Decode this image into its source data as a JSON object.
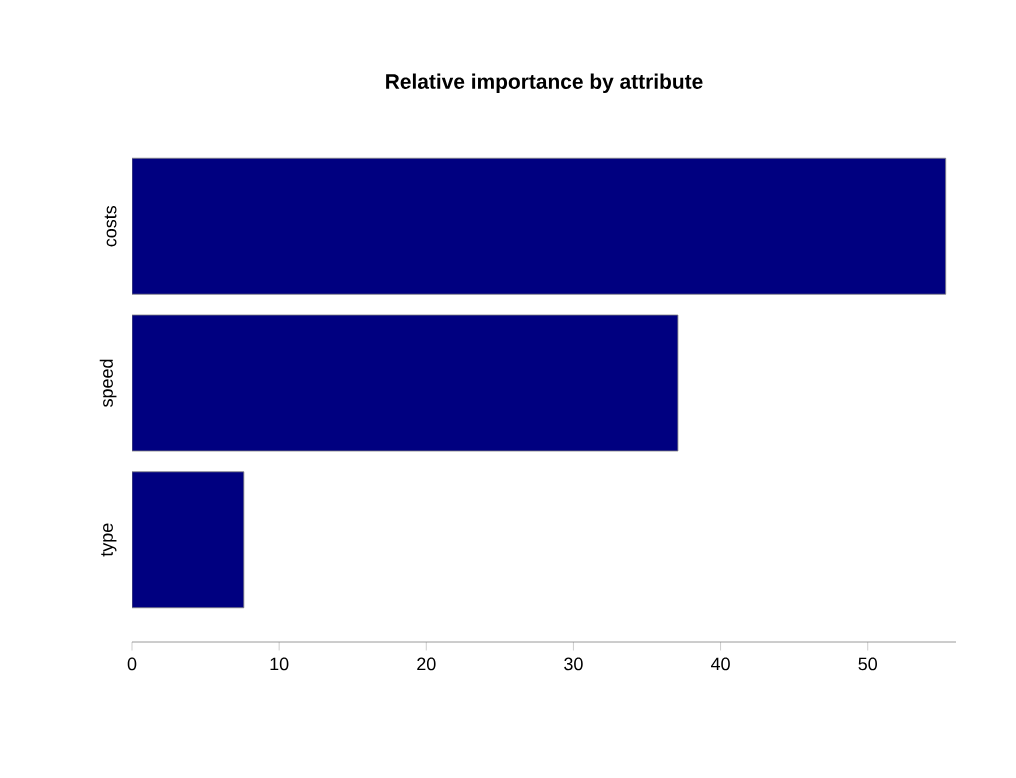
{
  "chart_data": {
    "type": "bar",
    "orientation": "horizontal",
    "title": "Relative importance by attribute",
    "categories": [
      "costs",
      "speed",
      "type"
    ],
    "values": [
      55.3,
      37.1,
      7.6
    ],
    "color": "#000080",
    "xlim": [
      0,
      56
    ],
    "xticks": [
      0,
      10,
      20,
      30,
      40,
      50
    ],
    "grid": false
  }
}
